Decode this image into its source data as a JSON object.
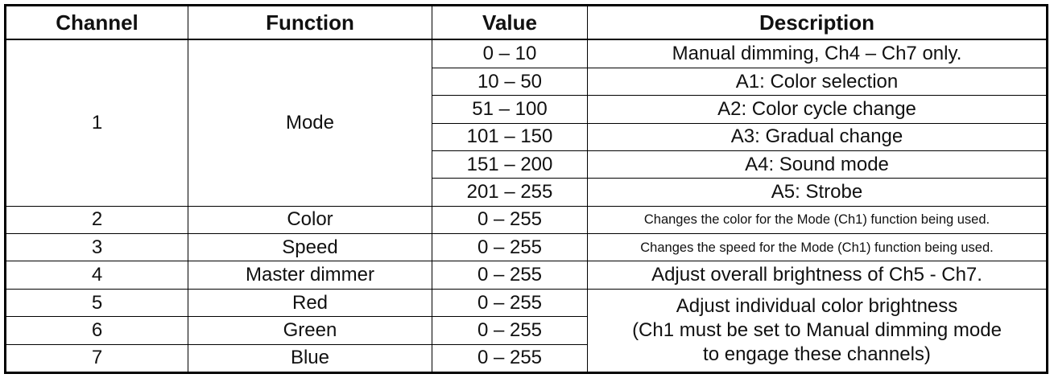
{
  "table": {
    "header": [
      "Channel",
      "Function",
      "Value",
      "Description"
    ],
    "rows": [
      {
        "channel": "1",
        "function": "Mode",
        "settings": [
          {
            "value": "0 – 10",
            "description": "Manual dimming, Ch4 – Ch7 only."
          },
          {
            "value": "10 – 50",
            "description": "A1: Color selection"
          },
          {
            "value": "51 – 100",
            "description": "A2: Color cycle change"
          },
          {
            "value": "101 – 150",
            "description": "A3: Gradual change"
          },
          {
            "value": "151 – 200",
            "description": "A4: Sound mode"
          },
          {
            "value": "201 – 255",
            "description": "A5: Strobe"
          }
        ]
      },
      {
        "channel": "2",
        "function": "Color",
        "value": "0 – 255",
        "description": "Changes the color for the Mode (Ch1) function being used."
      },
      {
        "channel": "3",
        "function": "Speed",
        "value": "0 – 255",
        "description": "Changes the speed for the Mode (Ch1) function being used."
      },
      {
        "channel": "4",
        "function": "Master dimmer",
        "value": "0 – 255",
        "description": "Adjust overall brightness of Ch5 - Ch7."
      },
      {
        "channel": "5",
        "function": "Red",
        "value": "0 – 255"
      },
      {
        "channel": "6",
        "function": "Green",
        "value": "0 – 255"
      },
      {
        "channel": "7",
        "function": "Blue",
        "value": "0 – 255"
      }
    ],
    "color_description": [
      "Adjust individual color brightness",
      "(Ch1 must be set to Manual dimming mode",
      "to engage these channels)"
    ]
  }
}
